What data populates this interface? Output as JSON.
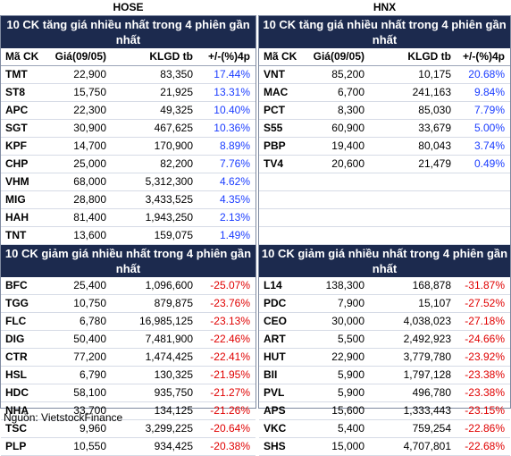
{
  "exchanges": {
    "hose": "HOSE",
    "hnx": "HNX"
  },
  "titles": {
    "gain": "10 CK tăng giá nhiều nhất trong 4 phiên gần nhất",
    "loss": "10 CK giảm giá nhiều nhất trong 4 phiên gần nhất"
  },
  "headers": {
    "code": "Mã CK",
    "price": "Giá(09/05)",
    "volume": "KLGD tb",
    "change": "+/-(%)4p"
  },
  "hose_gain": [
    {
      "code": "TMT",
      "price": "22,900",
      "volume": "83,350",
      "change": "17.44%"
    },
    {
      "code": "ST8",
      "price": "15,750",
      "volume": "21,925",
      "change": "13.31%"
    },
    {
      "code": "APC",
      "price": "22,300",
      "volume": "49,325",
      "change": "10.40%"
    },
    {
      "code": "SGT",
      "price": "30,900",
      "volume": "467,625",
      "change": "10.36%"
    },
    {
      "code": "KPF",
      "price": "14,700",
      "volume": "170,900",
      "change": "8.89%"
    },
    {
      "code": "CHP",
      "price": "25,000",
      "volume": "82,200",
      "change": "7.76%"
    },
    {
      "code": "VHM",
      "price": "68,000",
      "volume": "5,312,300",
      "change": "4.62%"
    },
    {
      "code": "MIG",
      "price": "28,800",
      "volume": "3,433,525",
      "change": "4.35%"
    },
    {
      "code": "HAH",
      "price": "81,400",
      "volume": "1,943,250",
      "change": "2.13%"
    },
    {
      "code": "TNT",
      "price": "13,600",
      "volume": "159,075",
      "change": "1.49%"
    }
  ],
  "hnx_gain": [
    {
      "code": "VNT",
      "price": "85,200",
      "volume": "10,175",
      "change": "20.68%"
    },
    {
      "code": "MAC",
      "price": "6,700",
      "volume": "241,163",
      "change": "9.84%"
    },
    {
      "code": "PCT",
      "price": "8,300",
      "volume": "85,030",
      "change": "7.79%"
    },
    {
      "code": "S55",
      "price": "60,900",
      "volume": "33,679",
      "change": "5.00%"
    },
    {
      "code": "PBP",
      "price": "19,400",
      "volume": "80,043",
      "change": "3.74%"
    },
    {
      "code": "TV4",
      "price": "20,600",
      "volume": "21,479",
      "change": "0.49%"
    }
  ],
  "hose_loss": [
    {
      "code": "BFC",
      "price": "25,400",
      "volume": "1,096,600",
      "change": "-25.07%"
    },
    {
      "code": "TGG",
      "price": "10,750",
      "volume": "879,875",
      "change": "-23.76%"
    },
    {
      "code": "FLC",
      "price": "6,780",
      "volume": "16,985,125",
      "change": "-23.13%"
    },
    {
      "code": "DIG",
      "price": "50,400",
      "volume": "7,481,900",
      "change": "-22.46%"
    },
    {
      "code": "CTR",
      "price": "77,200",
      "volume": "1,474,425",
      "change": "-22.41%"
    },
    {
      "code": "HSL",
      "price": "6,790",
      "volume": "130,325",
      "change": "-21.95%"
    },
    {
      "code": "HDC",
      "price": "58,100",
      "volume": "935,750",
      "change": "-21.27%"
    },
    {
      "code": "NHA",
      "price": "33,700",
      "volume": "134,125",
      "change": "-21.26%"
    },
    {
      "code": "TSC",
      "price": "9,960",
      "volume": "3,299,225",
      "change": "-20.64%"
    },
    {
      "code": "PLP",
      "price": "10,550",
      "volume": "934,425",
      "change": "-20.38%"
    }
  ],
  "hnx_loss": [
    {
      "code": "L14",
      "price": "138,300",
      "volume": "168,878",
      "change": "-31.87%"
    },
    {
      "code": "PDC",
      "price": "7,900",
      "volume": "15,107",
      "change": "-27.52%"
    },
    {
      "code": "CEO",
      "price": "30,000",
      "volume": "4,038,023",
      "change": "-27.18%"
    },
    {
      "code": "ART",
      "price": "5,500",
      "volume": "2,492,923",
      "change": "-24.66%"
    },
    {
      "code": "HUT",
      "price": "22,900",
      "volume": "3,779,780",
      "change": "-23.92%"
    },
    {
      "code": "BII",
      "price": "5,900",
      "volume": "1,797,128",
      "change": "-23.38%"
    },
    {
      "code": "PVL",
      "price": "5,900",
      "volume": "496,780",
      "change": "-23.38%"
    },
    {
      "code": "APS",
      "price": "15,600",
      "volume": "1,333,443",
      "change": "-23.15%"
    },
    {
      "code": "VKC",
      "price": "5,400",
      "volume": "759,254",
      "change": "-22.86%"
    },
    {
      "code": "SHS",
      "price": "15,000",
      "volume": "4,707,801",
      "change": "-22.68%"
    }
  ],
  "source": "Nguồn: VietstockFinance"
}
